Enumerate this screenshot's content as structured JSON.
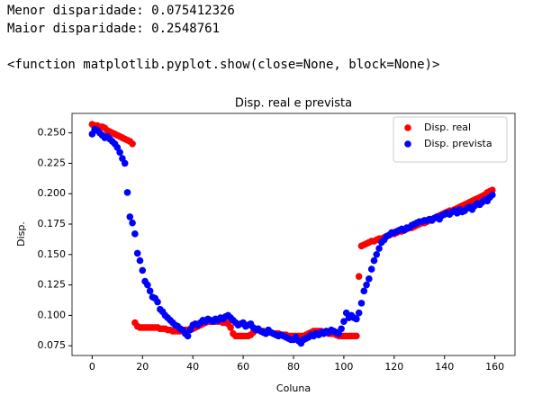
{
  "output_lines": [
    "Menor disparidade: 0.075412326",
    "Maior disparidade: 0.2548761",
    "<function matplotlib.pyplot.show(close=None, block=None)>"
  ],
  "chart_data": {
    "type": "scatter",
    "title": "Disp. real e prevista",
    "x_label": "Coluna",
    "y_label": "Disp.",
    "x": [
      0,
      1,
      2,
      3,
      4,
      5,
      6,
      7,
      8,
      9,
      10,
      11,
      12,
      13,
      14,
      15,
      16,
      17,
      18,
      19,
      20,
      21,
      22,
      23,
      24,
      25,
      26,
      27,
      28,
      29,
      30,
      31,
      32,
      33,
      34,
      35,
      36,
      37,
      38,
      39,
      40,
      41,
      42,
      43,
      44,
      45,
      46,
      47,
      48,
      49,
      50,
      51,
      52,
      53,
      54,
      55,
      56,
      57,
      58,
      59,
      60,
      61,
      62,
      63,
      64,
      65,
      66,
      67,
      68,
      69,
      70,
      71,
      72,
      73,
      74,
      75,
      76,
      77,
      78,
      79,
      80,
      81,
      82,
      83,
      84,
      85,
      86,
      87,
      88,
      89,
      90,
      91,
      92,
      93,
      94,
      95,
      96,
      97,
      98,
      99,
      100,
      101,
      102,
      103,
      104,
      105,
      106,
      107,
      108,
      109,
      110,
      111,
      112,
      113,
      114,
      115,
      116,
      117,
      118,
      119,
      120,
      121,
      122,
      123,
      124,
      125,
      126,
      127,
      128,
      129,
      130,
      131,
      132,
      133,
      134,
      135,
      136,
      137,
      138,
      139,
      140,
      141,
      142,
      143,
      144,
      145,
      146,
      147,
      148,
      149,
      150,
      151,
      152,
      153,
      154,
      155,
      156,
      157,
      158,
      159
    ],
    "series": [
      {
        "name": "Disp. real",
        "color": "#ff0000",
        "values": [
          0.257,
          0.256,
          0.256,
          0.255,
          0.255,
          0.254,
          0.252,
          0.251,
          0.25,
          0.249,
          0.248,
          0.247,
          0.246,
          0.245,
          0.244,
          0.243,
          0.241,
          0.094,
          0.091,
          0.09,
          0.09,
          0.09,
          0.09,
          0.09,
          0.09,
          0.09,
          0.09,
          0.089,
          0.089,
          0.089,
          0.088,
          0.088,
          0.087,
          0.087,
          0.087,
          0.087,
          0.088,
          0.088,
          0.088,
          0.089,
          0.089,
          0.09,
          0.091,
          0.092,
          0.093,
          0.094,
          0.095,
          0.095,
          0.095,
          0.095,
          0.095,
          0.095,
          0.094,
          0.094,
          0.093,
          0.09,
          0.085,
          0.083,
          0.083,
          0.083,
          0.083,
          0.083,
          0.083,
          0.084,
          0.086,
          0.088,
          0.088,
          0.087,
          0.087,
          0.086,
          0.086,
          0.086,
          0.085,
          0.085,
          0.085,
          0.084,
          0.084,
          0.084,
          0.083,
          0.083,
          0.083,
          0.083,
          0.083,
          0.083,
          0.083,
          0.084,
          0.085,
          0.086,
          0.087,
          0.087,
          0.087,
          0.087,
          0.086,
          0.086,
          0.085,
          0.085,
          0.085,
          0.084,
          0.083,
          0.083,
          0.083,
          0.083,
          0.083,
          0.083,
          0.083,
          0.083,
          0.132,
          0.157,
          0.158,
          0.159,
          0.16,
          0.161,
          0.161,
          0.162,
          0.163,
          0.163,
          0.164,
          0.165,
          0.166,
          0.167,
          0.167,
          0.168,
          0.169,
          0.169,
          0.17,
          0.171,
          0.172,
          0.172,
          0.173,
          0.174,
          0.175,
          0.176,
          0.176,
          0.177,
          0.178,
          0.179,
          0.18,
          0.181,
          0.182,
          0.183,
          0.184,
          0.185,
          0.186,
          0.186,
          0.187,
          0.188,
          0.189,
          0.19,
          0.191,
          0.192,
          0.193,
          0.194,
          0.195,
          0.196,
          0.197,
          0.198,
          0.199,
          0.201,
          0.202,
          0.203
        ]
      },
      {
        "name": "Disp. prevista",
        "color": "#0000ff",
        "values": [
          0.249,
          0.253,
          0.252,
          0.25,
          0.248,
          0.246,
          0.247,
          0.245,
          0.243,
          0.241,
          0.238,
          0.234,
          0.229,
          0.225,
          0.201,
          0.181,
          0.176,
          0.167,
          0.151,
          0.145,
          0.137,
          0.128,
          0.125,
          0.12,
          0.115,
          0.114,
          0.111,
          0.105,
          0.103,
          0.1,
          0.098,
          0.096,
          0.094,
          0.092,
          0.091,
          0.089,
          0.088,
          0.085,
          0.083,
          0.088,
          0.092,
          0.093,
          0.092,
          0.094,
          0.096,
          0.095,
          0.097,
          0.096,
          0.095,
          0.097,
          0.096,
          0.098,
          0.097,
          0.099,
          0.1,
          0.098,
          0.096,
          0.094,
          0.092,
          0.093,
          0.094,
          0.091,
          0.092,
          0.093,
          0.09,
          0.088,
          0.089,
          0.087,
          0.086,
          0.085,
          0.088,
          0.086,
          0.085,
          0.084,
          0.083,
          0.084,
          0.083,
          0.082,
          0.081,
          0.08,
          0.08,
          0.082,
          0.079,
          0.077,
          0.08,
          0.081,
          0.082,
          0.084,
          0.083,
          0.085,
          0.084,
          0.086,
          0.085,
          0.087,
          0.086,
          0.088,
          0.087,
          0.086,
          0.085,
          0.089,
          0.095,
          0.102,
          0.098,
          0.1,
          0.098,
          0.097,
          0.102,
          0.11,
          0.12,
          0.125,
          0.13,
          0.138,
          0.145,
          0.15,
          0.155,
          0.16,
          0.162,
          0.165,
          0.166,
          0.168,
          0.168,
          0.169,
          0.17,
          0.171,
          0.17,
          0.172,
          0.172,
          0.174,
          0.175,
          0.176,
          0.177,
          0.177,
          0.178,
          0.178,
          0.179,
          0.178,
          0.18,
          0.181,
          0.179,
          0.182,
          0.183,
          0.184,
          0.183,
          0.185,
          0.186,
          0.184,
          0.187,
          0.185,
          0.186,
          0.188,
          0.189,
          0.187,
          0.19,
          0.192,
          0.191,
          0.193,
          0.195,
          0.194,
          0.197,
          0.199
        ]
      }
    ],
    "xlim": [
      -8,
      168
    ],
    "xticks": [
      0,
      20,
      40,
      60,
      80,
      100,
      120,
      140,
      160
    ],
    "ylim": [
      0.067,
      0.266
    ],
    "yticks": [
      0.075,
      {
        "value": 0.1,
        "label": "0.100"
      },
      0.125,
      {
        "value": 0.15,
        "label": "0.150"
      },
      0.175,
      {
        "value": 0.2,
        "label": "0.200"
      },
      0.225,
      {
        "value": 0.25,
        "label": "0.250"
      }
    ],
    "legend": "upper right",
    "grid": false
  }
}
